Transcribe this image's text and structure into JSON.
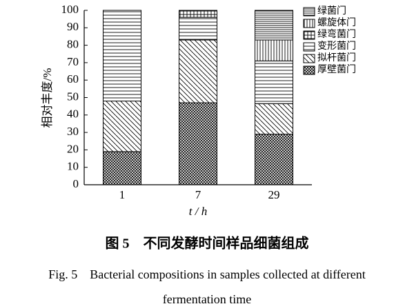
{
  "chart_data": {
    "type": "stacked_bar",
    "title": "图 5　不同发酵时间样品细菌组成",
    "subtitle": "Fig. 5　Bacterial compositions in samples collected at different fermentation time",
    "y_label": "相对丰度/%",
    "x_label": "t / h",
    "categories": [
      "1",
      "7",
      "29"
    ],
    "series": [
      {
        "name": "绿菌门",
        "color": "#000000",
        "pattern": "dense-horizontal",
        "values": [
          0,
          0,
          17
        ]
      },
      {
        "name": "螺旋体门",
        "color": "#000000",
        "pattern": "vertical",
        "values": [
          0,
          0,
          12
        ]
      },
      {
        "name": "绿弯菌门",
        "color": "#000000",
        "pattern": "grid",
        "values": [
          0,
          4,
          0
        ]
      },
      {
        "name": "变形菌门",
        "color": "#000000",
        "pattern": "horizontal",
        "values": [
          52,
          13,
          24.5
        ]
      },
      {
        "name": "拟杆菌门",
        "color": "#000000",
        "pattern": "diagonal",
        "values": [
          29,
          36,
          17.5
        ]
      },
      {
        "name": "厚壁菌门",
        "color": "#000000",
        "pattern": "crosshatch",
        "values": [
          19,
          47,
          29
        ]
      }
    ],
    "ylim": [
      0,
      100
    ],
    "yticks": [
      0,
      10,
      20,
      30,
      40,
      50,
      60,
      70,
      80,
      90,
      100
    ]
  }
}
